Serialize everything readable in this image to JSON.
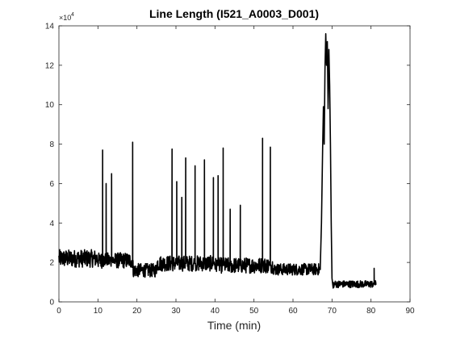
{
  "chart_data": {
    "type": "line",
    "title": "Line Length (I521_A0003_D001)",
    "xlabel": "Time (min)",
    "ylabel": "",
    "xlim": [
      0,
      90
    ],
    "ylim": [
      0,
      140000
    ],
    "x_ticks": [
      0,
      10,
      20,
      30,
      40,
      50,
      60,
      70,
      80,
      90
    ],
    "y_ticks": [
      0,
      2,
      4,
      6,
      8,
      10,
      12,
      14
    ],
    "y_exponent_label": "×10",
    "y_exponent_power": "4",
    "grid": false,
    "line_color": "#000000",
    "series": [
      {
        "x_start": 0,
        "x_end": 81.3,
        "baseline_segments": [
          {
            "x0": 0,
            "x1": 10,
            "mean": 22000,
            "noise": 4500
          },
          {
            "x0": 10,
            "x1": 19,
            "mean": 21000,
            "noise": 4000
          },
          {
            "x0": 19,
            "x1": 25,
            "mean": 16000,
            "noise": 3500
          },
          {
            "x0": 25,
            "x1": 40,
            "mean": 19500,
            "noise": 4000
          },
          {
            "x0": 40,
            "x1": 55,
            "mean": 18500,
            "noise": 4000
          },
          {
            "x0": 55,
            "x1": 67,
            "mean": 16500,
            "noise": 3000
          },
          {
            "x0": 70,
            "x1": 81.3,
            "mean": 9000,
            "noise": 1800
          }
        ],
        "spikes": [
          {
            "x": 11.2,
            "y": 77000
          },
          {
            "x": 12.1,
            "y": 60000
          },
          {
            "x": 13.5,
            "y": 65000
          },
          {
            "x": 18.9,
            "y": 81000
          },
          {
            "x": 29.0,
            "y": 77500
          },
          {
            "x": 30.2,
            "y": 61000
          },
          {
            "x": 31.5,
            "y": 53000
          },
          {
            "x": 32.5,
            "y": 73000
          },
          {
            "x": 34.9,
            "y": 69000
          },
          {
            "x": 37.3,
            "y": 72000
          },
          {
            "x": 39.6,
            "y": 63000
          },
          {
            "x": 40.8,
            "y": 64000
          },
          {
            "x": 42.1,
            "y": 78000
          },
          {
            "x": 43.9,
            "y": 47000
          },
          {
            "x": 46.5,
            "y": 49000
          },
          {
            "x": 52.2,
            "y": 83000
          },
          {
            "x": 54.2,
            "y": 78500
          },
          {
            "x": 80.8,
            "y": 17000
          }
        ],
        "seizure_burst": [
          [
            67.0,
            18000
          ],
          [
            67.3,
            40000
          ],
          [
            67.6,
            78000
          ],
          [
            67.8,
            99000
          ],
          [
            68.0,
            80000
          ],
          [
            68.2,
            118000
          ],
          [
            68.4,
            136000
          ],
          [
            68.6,
            120000
          ],
          [
            68.8,
            132000
          ],
          [
            69.0,
            98000
          ],
          [
            69.2,
            128000
          ],
          [
            69.4,
            110000
          ],
          [
            69.6,
            80000
          ],
          [
            69.8,
            40000
          ],
          [
            70.0,
            12000
          ],
          [
            70.3,
            7000
          ]
        ]
      }
    ]
  }
}
